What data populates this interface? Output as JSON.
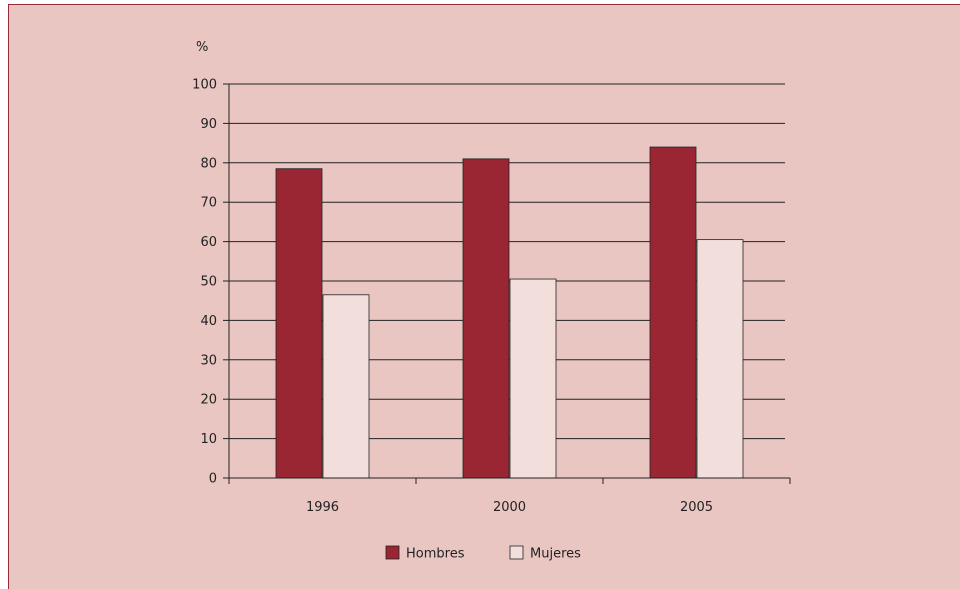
{
  "chart_data": {
    "type": "bar",
    "y_unit_label": "%",
    "categories": [
      "1996",
      "2000",
      "2005"
    ],
    "series": [
      {
        "name": "Hombres",
        "color": "#9a2533",
        "values": [
          78.5,
          81,
          84
        ]
      },
      {
        "name": "Mujeres",
        "color": "#f2dfdc",
        "values": [
          46.5,
          50.5,
          60.5
        ]
      }
    ],
    "ylim": [
      0,
      100
    ],
    "yticks": [
      0,
      10,
      20,
      30,
      40,
      50,
      60,
      70,
      80,
      90,
      100
    ],
    "grid": true,
    "legend_position": "bottom-center"
  },
  "colors": {
    "background": "#e9c6c1",
    "border": "#9a2a36",
    "axis": "#222222"
  }
}
